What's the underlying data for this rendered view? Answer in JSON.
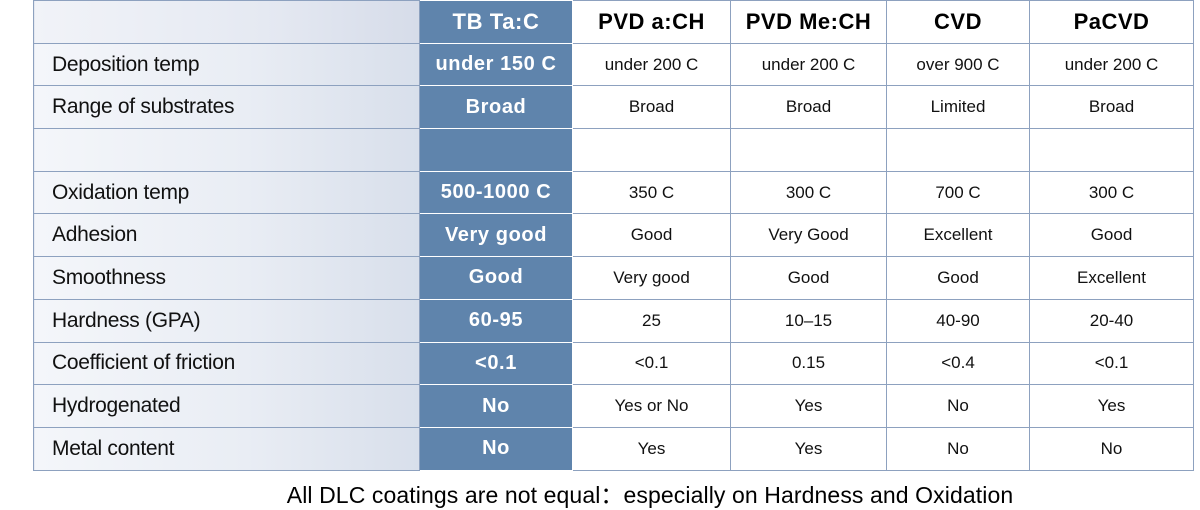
{
  "table": {
    "columns": [
      "TB Ta:C",
      "PVD a:CH",
      "PVD Me:CH",
      "CVD",
      "PaCVD"
    ],
    "rows": [
      {
        "label": "Deposition temp",
        "values": [
          "under 150 C",
          "under 200 C",
          "under 200 C",
          "over 900 C",
          "under 200 C"
        ]
      },
      {
        "label": "Range of substrates",
        "values": [
          "Broad",
          "Broad",
          "Broad",
          "Limited",
          "Broad"
        ]
      },
      {
        "label": "",
        "values": [
          "",
          "",
          "",
          "",
          ""
        ]
      },
      {
        "label": "Oxidation temp",
        "values": [
          "500-1000 C",
          "350 C",
          "300 C",
          "700 C",
          "300 C"
        ]
      },
      {
        "label": "Adhesion",
        "values": [
          "Very good",
          "Good",
          "Very Good",
          "Excellent",
          "Good"
        ]
      },
      {
        "label": "Smoothness",
        "values": [
          "Good",
          "Very good",
          "Good",
          "Good",
          "Excellent"
        ]
      },
      {
        "label": "Hardness (GPA)",
        "values": [
          "60-95",
          "25",
          "10–15",
          "40-90",
          "20-40"
        ]
      },
      {
        "label": "Coefficient of friction",
        "values": [
          "<0.1",
          "<0.1",
          "0.15",
          "<0.4",
          "<0.1"
        ]
      },
      {
        "label": "Hydrogenated",
        "values": [
          "No",
          "Yes or No",
          "Yes",
          "No",
          "Yes"
        ]
      },
      {
        "label": "Metal content",
        "values": [
          "No",
          "Yes",
          "Yes",
          "No",
          "No"
        ]
      }
    ]
  },
  "caption": "All DLC coatings are not equal：especially on Hardness and Oxidation",
  "colors": {
    "highlight": "#5f84ac",
    "border": "#8da1bf",
    "label_bg": "#e9edf4"
  }
}
